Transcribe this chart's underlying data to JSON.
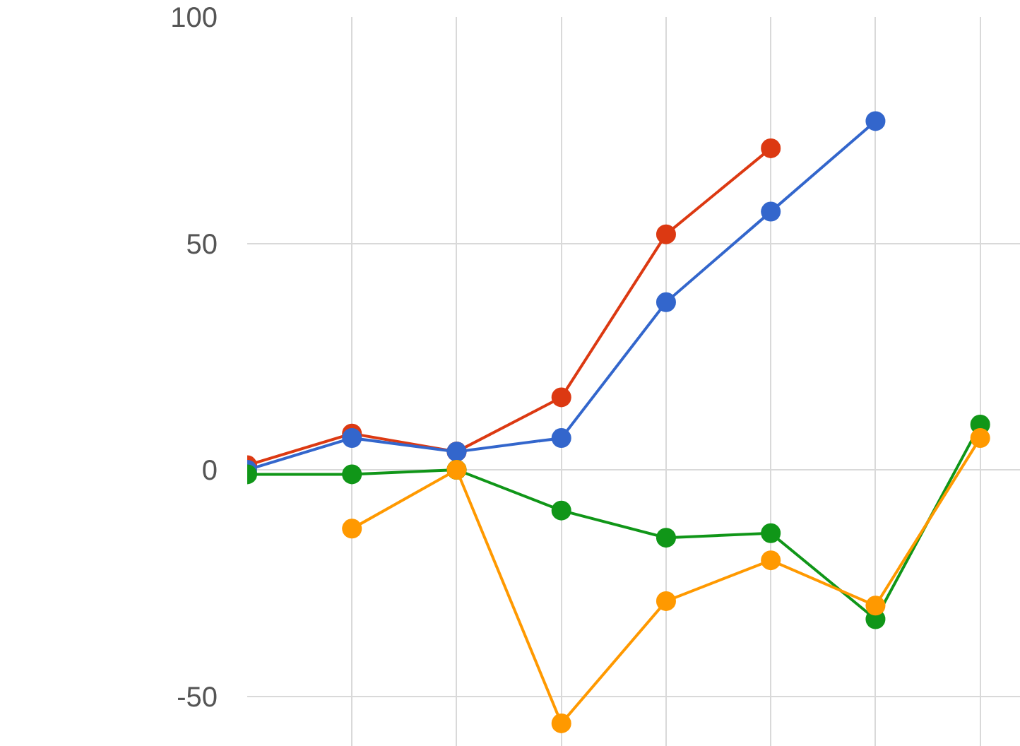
{
  "chart_data": {
    "type": "line",
    "categories": [
      null,
      null,
      null,
      null,
      null,
      null,
      null,
      null
    ],
    "series": [
      {
        "color": "#dc3912",
        "values": [
          1,
          8,
          4,
          16,
          52,
          71,
          null,
          null
        ]
      },
      {
        "color": "#3366cc",
        "values": [
          0,
          7,
          4,
          7,
          37,
          57,
          77,
          null
        ]
      },
      {
        "color": "#109618",
        "values": [
          -1,
          -1,
          0,
          -9,
          -15,
          -14,
          -33,
          10
        ]
      },
      {
        "color": "#ff9900",
        "values": [
          null,
          -13,
          0,
          -56,
          -29,
          -20,
          -30,
          7
        ]
      }
    ],
    "ylim": [
      -61,
      100
    ],
    "yticks": [
      -50,
      0,
      50,
      100
    ],
    "grid": true,
    "marker": "circle",
    "line_style": "solid",
    "tick_labels": "y"
  }
}
